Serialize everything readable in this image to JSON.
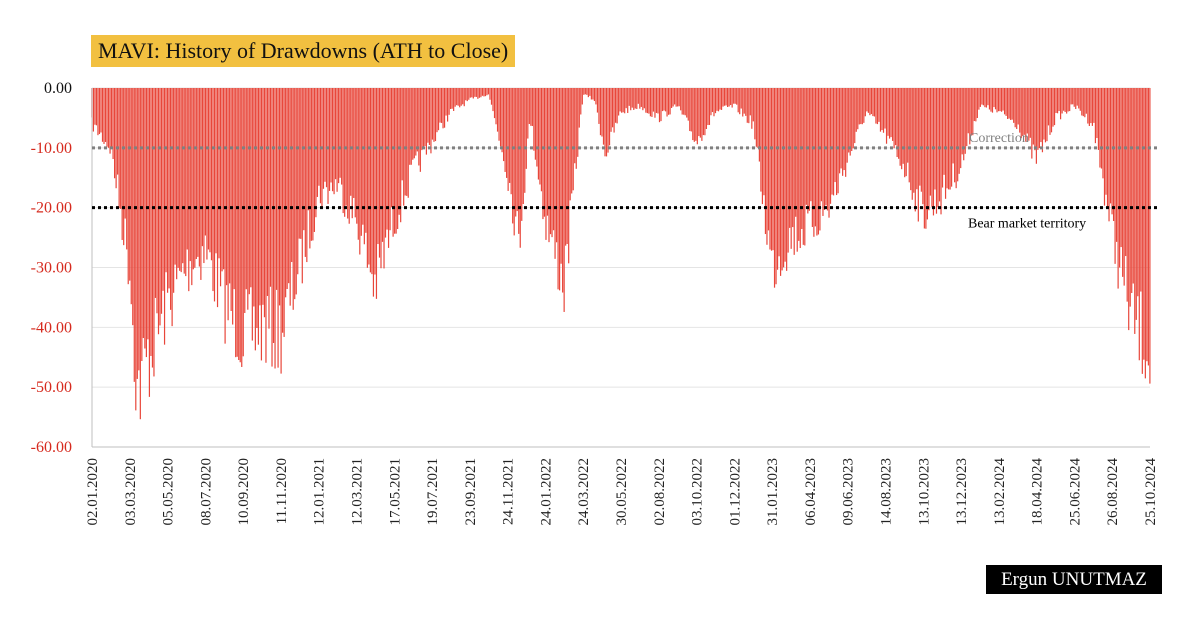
{
  "chart_data": {
    "type": "bar",
    "title": "MAVI: History of Drawdowns (ATH to Close)",
    "xlabel": "",
    "ylabel": "",
    "ylim": [
      -60,
      0
    ],
    "y_ticks": [
      "0.00",
      "-10.00",
      "-20.00",
      "-30.00",
      "-40.00",
      "-50.00",
      "-60.00"
    ],
    "y_tick_values": [
      0,
      -10,
      -20,
      -30,
      -40,
      -50,
      -60
    ],
    "x_tick_labels": [
      "02.01.2020",
      "03.03.2020",
      "05.05.2020",
      "08.07.2020",
      "10.09.2020",
      "11.11.2020",
      "12.01.2021",
      "12.03.2021",
      "17.05.2021",
      "19.07.2021",
      "23.09.2021",
      "24.11.2021",
      "24.01.2022",
      "24.03.2022",
      "30.05.2022",
      "02.08.2022",
      "03.10.2022",
      "01.12.2022",
      "31.01.2023",
      "06.04.2023",
      "09.06.2023",
      "14.08.2023",
      "13.10.2023",
      "13.12.2023",
      "13.02.2024",
      "18.04.2024",
      "25.06.2024",
      "26.08.2024",
      "25.10.2024"
    ],
    "grid": "horizontal",
    "bar_color": "#e8463a",
    "series": [
      {
        "x_tick_index": [
          0,
          0.5,
          1,
          1.2,
          1.5,
          2,
          2.5,
          3,
          3.5,
          4,
          4.5,
          5,
          5.5,
          6,
          6.5,
          7,
          7.5,
          8,
          8.5,
          9,
          9.5,
          10,
          10.5,
          11,
          11.3,
          11.6,
          12,
          12.5,
          13,
          13.3,
          13.6,
          14,
          14.5,
          15,
          15.5,
          16,
          16.5,
          17,
          17.5,
          18,
          18.5,
          19,
          19.5,
          20,
          20.5,
          21,
          21.5,
          22,
          22.5,
          23,
          23.5,
          24,
          24.5,
          25,
          25.5,
          26,
          26.5,
          27,
          27.5,
          28
        ],
        "values": [
          -6,
          -10,
          -30,
          -51,
          -45,
          -36,
          -30,
          -27,
          -36,
          -41,
          -40,
          -41,
          -30,
          -18,
          -16,
          -22,
          -33,
          -22,
          -14,
          -9,
          -4,
          -2,
          -1,
          -14,
          -26,
          -5,
          -22,
          -33,
          -1,
          -2,
          -11,
          -4,
          -3,
          -5,
          -3,
          -9,
          -4,
          -3,
          -6,
          -30,
          -25,
          -23,
          -20,
          -12,
          -4,
          -8,
          -13,
          -21,
          -18,
          -13,
          -3,
          -4,
          -6,
          -12,
          -5,
          -3,
          -6,
          -24,
          -38,
          -44
        ]
      }
    ],
    "reference_lines": [
      {
        "value": -10,
        "label": "Correction",
        "color": "#808080"
      },
      {
        "value": -20,
        "label": "Bear market territory",
        "color": "#000000"
      }
    ]
  },
  "credit": "Ergun UNUTMAZ"
}
